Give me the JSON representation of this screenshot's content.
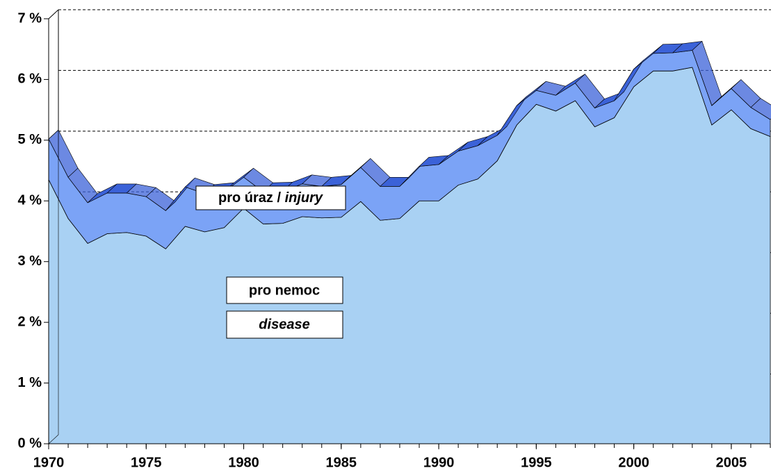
{
  "chart_data": {
    "type": "stacked-area",
    "x": [
      1970,
      1971,
      1972,
      1973,
      1974,
      1975,
      1976,
      1977,
      1978,
      1979,
      1980,
      1981,
      1982,
      1983,
      1984,
      1985,
      1986,
      1987,
      1988,
      1989,
      1990,
      1991,
      1992,
      1993,
      1994,
      1995,
      1996,
      1997,
      1998,
      1999,
      2000,
      2001,
      2002,
      2003,
      2004,
      2005,
      2006,
      2007
    ],
    "series": [
      {
        "name": "pro nemoc / disease",
        "color": "#a9d1f3",
        "values": [
          4.35,
          3.71,
          3.3,
          3.46,
          3.48,
          3.42,
          3.21,
          3.58,
          3.49,
          3.56,
          3.88,
          3.62,
          3.63,
          3.74,
          3.72,
          3.73,
          3.99,
          3.68,
          3.71,
          4.0,
          4.0,
          4.26,
          4.36,
          4.66,
          5.25,
          5.59,
          5.48,
          5.65,
          5.22,
          5.37,
          5.88,
          6.14,
          6.14,
          6.2,
          5.25,
          5.5,
          5.19,
          5.06
        ]
      },
      {
        "name": "pro úraz / injury",
        "color": "#7ba3f6",
        "values": [
          0.67,
          0.68,
          0.67,
          0.67,
          0.65,
          0.65,
          0.63,
          0.65,
          0.63,
          0.59,
          0.51,
          0.53,
          0.53,
          0.54,
          0.52,
          0.54,
          0.56,
          0.56,
          0.53,
          0.57,
          0.6,
          0.56,
          0.55,
          0.42,
          0.32,
          0.23,
          0.26,
          0.29,
          0.31,
          0.28,
          0.29,
          0.29,
          0.3,
          0.28,
          0.32,
          0.35,
          0.35,
          0.28
        ]
      }
    ],
    "annotations": {
      "injury_prefix": "pro úraz / ",
      "injury_italic": "injury",
      "disease_cz": "pro nemoc",
      "disease_en": "disease"
    },
    "xlim": [
      1970,
      2007
    ],
    "xticks": [
      1970,
      1975,
      1980,
      1985,
      1990,
      1995,
      2000,
      2005
    ],
    "ylim": [
      0,
      7
    ],
    "yticks": [
      {
        "value": 0,
        "label": "0 %"
      },
      {
        "value": 1,
        "label": "1 %"
      },
      {
        "value": 2,
        "label": "2 %"
      },
      {
        "value": 3,
        "label": "3 %"
      },
      {
        "value": 4,
        "label": "4 %"
      },
      {
        "value": 5,
        "label": "5 %"
      },
      {
        "value": 6,
        "label": "6 %"
      },
      {
        "value": 7,
        "label": "7 %"
      }
    ],
    "grid": true,
    "top_color": "#3b62d8"
  }
}
